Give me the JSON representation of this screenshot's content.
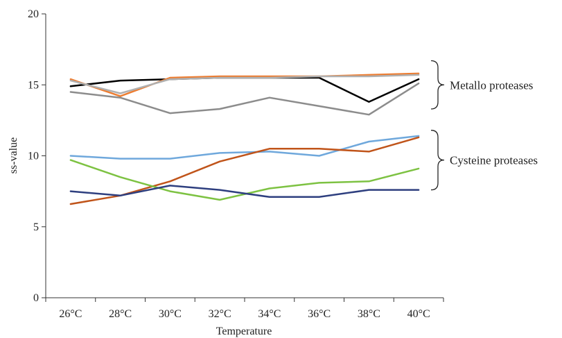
{
  "chart_data": {
    "type": "line",
    "title": "",
    "xlabel": "Temperature",
    "ylabel": "ss-value",
    "ylim": [
      0,
      20
    ],
    "yticks": [
      0,
      5,
      10,
      15,
      20
    ],
    "grid": false,
    "categories": [
      "26°C",
      "28°C",
      "30°C",
      "32°C",
      "34°C",
      "36°C",
      "38°C",
      "40°C"
    ],
    "series": [
      {
        "color": "#000000",
        "values": [
          14.9,
          15.3,
          15.4,
          15.5,
          15.5,
          15.5,
          13.8,
          15.4
        ]
      },
      {
        "color": "#ed7d31",
        "values": [
          15.4,
          14.2,
          15.5,
          15.6,
          15.6,
          15.6,
          15.7,
          15.8
        ]
      },
      {
        "color": "#b0b0b0",
        "values": [
          15.3,
          14.4,
          15.4,
          15.5,
          15.5,
          15.6,
          15.6,
          15.7
        ]
      },
      {
        "color": "#8c8c8c",
        "values": [
          14.5,
          14.1,
          13.0,
          13.3,
          14.1,
          13.5,
          12.9,
          15.1
        ]
      },
      {
        "color": "#6fa8dc",
        "values": [
          10.0,
          9.8,
          9.8,
          10.2,
          10.3,
          10.0,
          11.0,
          11.4
        ]
      },
      {
        "color": "#c0541a",
        "values": [
          6.6,
          7.2,
          8.2,
          9.6,
          10.5,
          10.5,
          10.3,
          11.3
        ]
      },
      {
        "color": "#7dc242",
        "values": [
          9.7,
          8.5,
          7.5,
          6.9,
          7.7,
          8.1,
          8.2,
          9.1
        ]
      },
      {
        "color": "#2e3f7f",
        "values": [
          7.5,
          7.2,
          7.9,
          7.6,
          7.1,
          7.1,
          7.6,
          7.6
        ]
      }
    ],
    "annotations": [
      {
        "label": "Metallo proteases",
        "ymin": 13.3,
        "ymax": 16.7
      },
      {
        "label": "Cysteine proteases",
        "ymin": 7.6,
        "ymax": 11.8
      }
    ]
  }
}
